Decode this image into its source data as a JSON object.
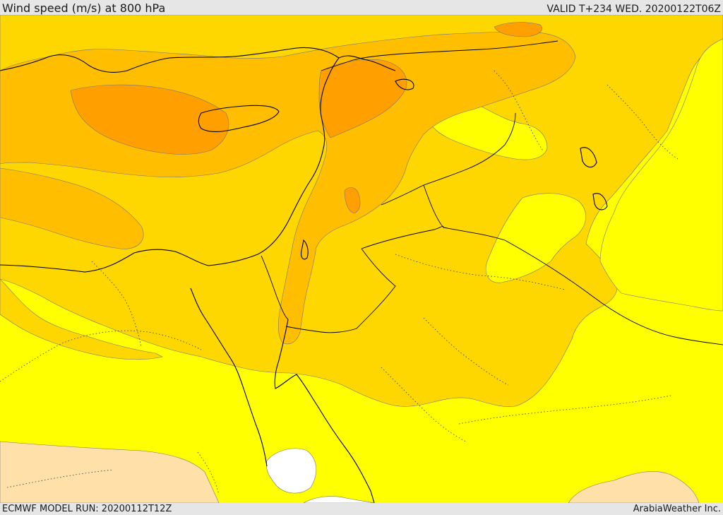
{
  "header": {
    "title": "Wind speed (m/s) at 800 hPa",
    "valid": "VALID T+234 WED. 20200122T06Z"
  },
  "footer": {
    "model_run": "ECMWF MODEL RUN: 20200112T12Z",
    "credit": "ArabiaWeather Inc."
  },
  "colors": {
    "bar_background": "#e6e6e6",
    "band_lowest": "#ffffff",
    "band_light": "#ffe0a8",
    "band_yellow": "#ffff00",
    "band_gold": "#ffd700",
    "band_amber": "#ffbf00",
    "band_orange": "#ff9f00",
    "coastline": "#000000"
  }
}
